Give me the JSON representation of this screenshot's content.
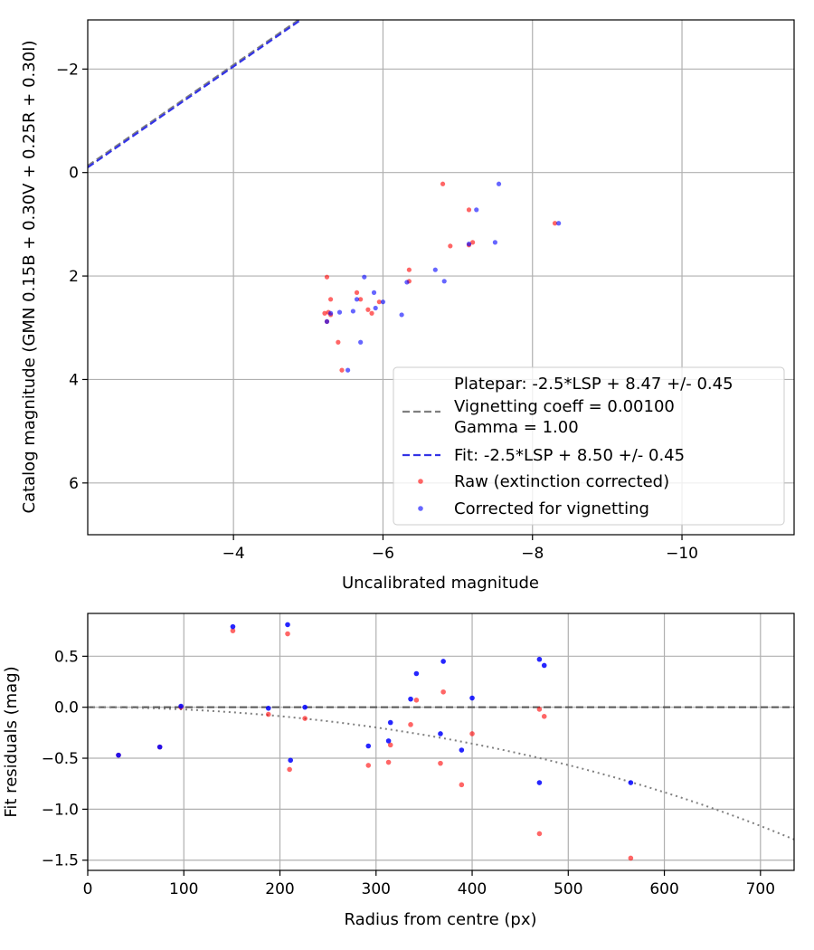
{
  "chart_data": [
    {
      "type": "scatter",
      "xlabel": "Uncalibrated magnitude",
      "ylabel": "Catalog magnitude (GMN 0.15B + 0.30V + 0.25R + 0.30I)",
      "xlim": [
        -2.05,
        -11.5
      ],
      "ylim": [
        7.0,
        -2.95
      ],
      "xticks": [
        -4,
        -6,
        -8,
        -10
      ],
      "yticks": [
        -2,
        0,
        2,
        4,
        6
      ],
      "xtick_labels": [
        "−4",
        "−6",
        "−8",
        "−10"
      ],
      "ytick_labels": [
        "−2",
        "0",
        "2",
        "4",
        "6"
      ],
      "grid": true,
      "legend_location": "lower right",
      "legend": {
        "platepar_lines": [
          "Platepar: -2.5*LSP + 8.47 +/- 0.45",
          "Vignetting coeff = 0.00100",
          "Gamma = 1.00"
        ],
        "fit": "Fit: -2.5*LSP + 8.50 +/- 0.45",
        "raw": "Raw (extinction corrected)",
        "corrected": "Corrected for vignetting"
      },
      "lines": [
        {
          "name": "Platepar",
          "style": "dashed",
          "color": "#7f7f7f",
          "lsp_coefficient": -2.5,
          "zero_point": 8.47
        },
        {
          "name": "Fit",
          "style": "dashed",
          "color": "#3333e6",
          "lsp_coefficient": -2.5,
          "zero_point": 8.5
        }
      ],
      "series": [
        {
          "name": "Raw (extinction corrected)",
          "color": "#ff0000",
          "points": [
            [
              -5.25,
              2.02
            ],
            [
              -5.3,
              2.45
            ],
            [
              -5.27,
              2.7
            ],
            [
              -5.22,
              2.72
            ],
            [
              -5.3,
              2.75
            ],
            [
              -5.25,
              2.88
            ],
            [
              -5.4,
              3.28
            ],
            [
              -5.45,
              3.82
            ],
            [
              -5.65,
              2.32
            ],
            [
              -5.7,
              2.45
            ],
            [
              -5.8,
              2.65
            ],
            [
              -5.85,
              2.72
            ],
            [
              -5.95,
              2.5
            ],
            [
              -6.35,
              2.1
            ],
            [
              -6.35,
              1.88
            ],
            [
              -6.8,
              0.22
            ],
            [
              -6.9,
              1.42
            ],
            [
              -7.15,
              0.72
            ],
            [
              -7.2,
              1.35
            ],
            [
              -7.15,
              1.4
            ],
            [
              -8.3,
              0.98
            ]
          ]
        },
        {
          "name": "Corrected for vignetting",
          "color": "#0000ff",
          "points": [
            [
              -5.25,
              2.88
            ],
            [
              -5.3,
              2.72
            ],
            [
              -5.42,
              2.7
            ],
            [
              -5.53,
              3.82
            ],
            [
              -5.6,
              2.68
            ],
            [
              -5.65,
              2.45
            ],
            [
              -5.7,
              3.28
            ],
            [
              -5.75,
              2.02
            ],
            [
              -5.88,
              2.32
            ],
            [
              -5.9,
              2.62
            ],
            [
              -6.0,
              2.5
            ],
            [
              -6.25,
              2.75
            ],
            [
              -6.32,
              2.12
            ],
            [
              -6.7,
              1.88
            ],
            [
              -6.82,
              2.1
            ],
            [
              -7.15,
              1.38
            ],
            [
              -7.25,
              0.72
            ],
            [
              -7.5,
              1.35
            ],
            [
              -7.55,
              0.22
            ],
            [
              -8.35,
              0.98
            ]
          ]
        }
      ]
    },
    {
      "type": "scatter",
      "xlabel": "Radius from centre (px)",
      "ylabel": "Fit residuals (mag)",
      "xlim": [
        0,
        735
      ],
      "ylim": [
        -1.6,
        0.92
      ],
      "xticks": [
        0,
        100,
        200,
        300,
        400,
        500,
        600,
        700
      ],
      "yticks": [
        0.5,
        0.0,
        -0.5,
        -1.0,
        -1.5
      ],
      "xtick_labels": [
        "0",
        "100",
        "200",
        "300",
        "400",
        "500",
        "600",
        "700"
      ],
      "ytick_labels": [
        "0.5",
        "0.0",
        "−0.5",
        "−1.0",
        "−1.5"
      ],
      "grid": true,
      "lines": [
        {
          "name": "Zero",
          "style": "dashed",
          "color": "#555555",
          "y": 0.0
        },
        {
          "name": "Vignetting model",
          "style": "dotted",
          "color": "#7f7f7f",
          "coefficient": 0.001,
          "formula": "-2.5*log10(cos(coefficient*radius)^4)"
        }
      ],
      "series": [
        {
          "name": "Raw (extinction corrected)",
          "color": "#ff0000",
          "points": [
            [
              32,
              -0.47
            ],
            [
              75,
              -0.39
            ],
            [
              97,
              0.0
            ],
            [
              151,
              0.75
            ],
            [
              188,
              -0.07
            ],
            [
              208,
              0.72
            ],
            [
              210,
              -0.61
            ],
            [
              226,
              -0.11
            ],
            [
              292,
              -0.57
            ],
            [
              313,
              -0.54
            ],
            [
              315,
              -0.37
            ],
            [
              336,
              -0.17
            ],
            [
              342,
              0.07
            ],
            [
              367,
              -0.55
            ],
            [
              370,
              0.15
            ],
            [
              389,
              -0.76
            ],
            [
              400,
              -0.26
            ],
            [
              470,
              -1.24
            ],
            [
              470,
              -0.02
            ],
            [
              475,
              -0.09
            ],
            [
              565,
              -1.48
            ]
          ]
        },
        {
          "name": "Corrected for vignetting",
          "color": "#0000ff",
          "points": [
            [
              32,
              -0.47
            ],
            [
              75,
              -0.39
            ],
            [
              97,
              0.01
            ],
            [
              151,
              0.79
            ],
            [
              188,
              -0.01
            ],
            [
              208,
              0.81
            ],
            [
              211,
              -0.52
            ],
            [
              226,
              0.0
            ],
            [
              292,
              -0.38
            ],
            [
              313,
              -0.33
            ],
            [
              315,
              -0.15
            ],
            [
              336,
              0.08
            ],
            [
              342,
              0.33
            ],
            [
              367,
              -0.26
            ],
            [
              370,
              0.45
            ],
            [
              389,
              -0.42
            ],
            [
              400,
              0.09
            ],
            [
              470,
              -0.74
            ],
            [
              470,
              0.47
            ],
            [
              475,
              0.41
            ],
            [
              565,
              -0.74
            ]
          ]
        }
      ]
    }
  ]
}
